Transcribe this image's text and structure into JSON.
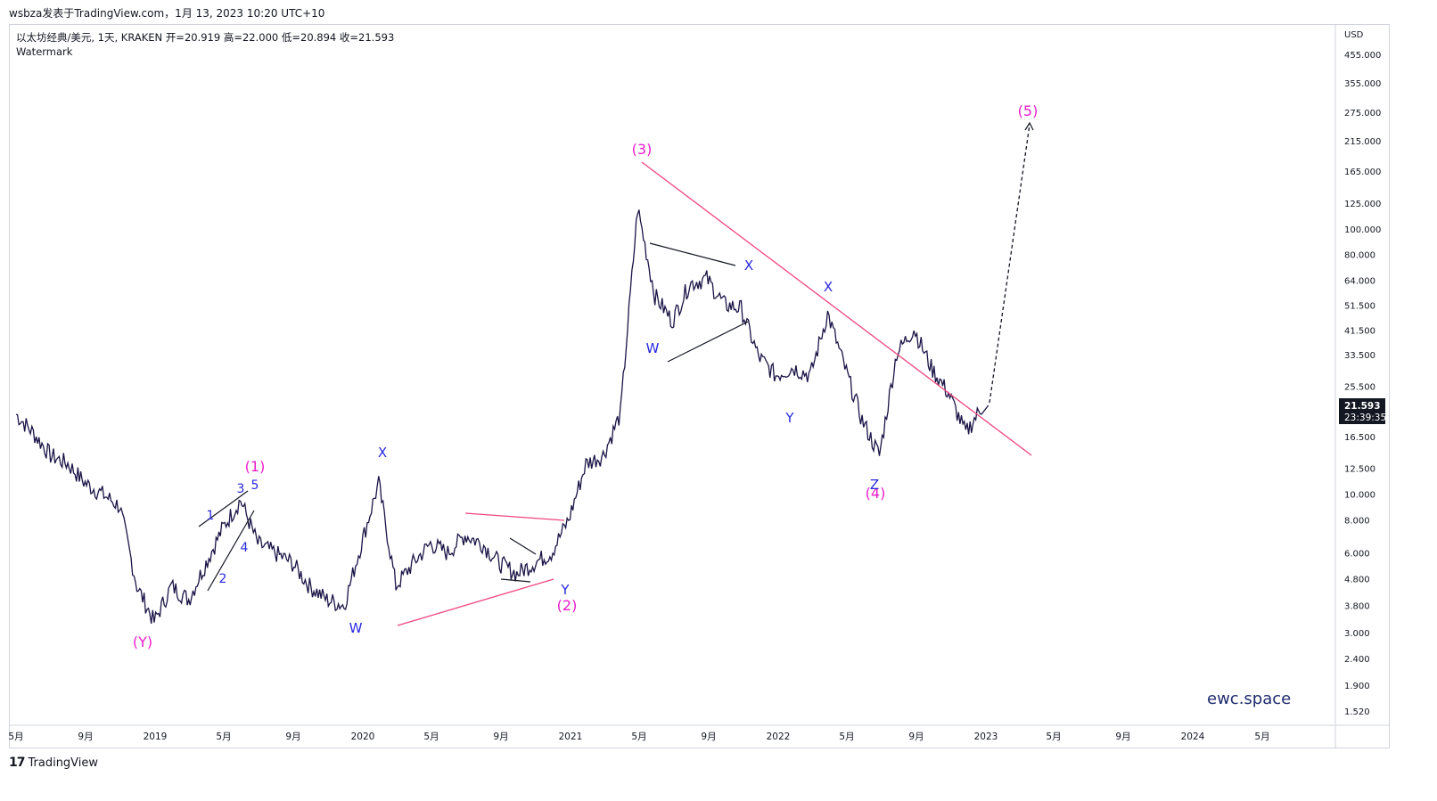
{
  "header": {
    "publisher_line": "wsbza发表于TradingView.com，1月 13, 2023 10:20 UTC+10"
  },
  "symbol": {
    "name": "以太坊经典/美元, 1天, KRAKEN",
    "open_label": "开=20.919",
    "high_label": "高=22.000",
    "low_label": "低=20.894",
    "close_label": "收=21.593",
    "watermark_label": "Watermark"
  },
  "price_tag": {
    "value": "21.593",
    "countdown": "23:39:35",
    "color": "#131722"
  },
  "brand": {
    "site": "ewc.space",
    "footer": "TradingView",
    "footer_logo": "17"
  },
  "colors": {
    "candles": "#1a1446",
    "magenta": "#e91ecb",
    "blue": "#2929e0",
    "trendline": "#f0457c",
    "black_line": "#131722"
  },
  "chart_data": {
    "type": "line",
    "scale": "log",
    "y_unit": "USD",
    "y_ticks": [
      "455.000",
      "355.000",
      "275.000",
      "215.000",
      "165.000",
      "125.000",
      "100.000",
      "80.000",
      "64.000",
      "51.500",
      "41.500",
      "33.500",
      "25.500",
      "16.500",
      "12.500",
      "10.000",
      "8.000",
      "6.000",
      "4.800",
      "3.800",
      "3.000",
      "2.400",
      "1.900",
      "1.520"
    ],
    "x_ticks": [
      "5月",
      "9月",
      "2019",
      "5月",
      "9月",
      "2020",
      "5月",
      "9月",
      "2021",
      "5月",
      "9月",
      "2022",
      "5月",
      "9月",
      "2023",
      "5月",
      "9月",
      "2024",
      "5月"
    ],
    "series": [
      {
        "x": [
          "2018-05",
          "2018-06",
          "2018-07",
          "2018-08",
          "2018-09",
          "2018-10",
          "2018-11",
          "2018-12",
          "2019-01",
          "2019-02",
          "2019-03",
          "2019-04",
          "2019-05",
          "2019-06",
          "2019-07",
          "2019-08",
          "2019-09",
          "2019-10",
          "2019-11",
          "2019-12",
          "2020-01",
          "2020-02",
          "2020-03",
          "2020-04",
          "2020-05",
          "2020-06",
          "2020-07",
          "2020-08",
          "2020-09",
          "2020-10",
          "2020-11",
          "2020-12",
          "2021-01",
          "2021-02",
          "2021-03",
          "2021-04",
          "2021-05",
          "2021-06",
          "2021-07",
          "2021-08",
          "2021-09",
          "2021-10",
          "2021-11",
          "2021-12",
          "2022-01",
          "2022-02",
          "2022-03",
          "2022-04",
          "2022-05",
          "2022-06",
          "2022-07",
          "2022-08",
          "2022-09",
          "2022-10",
          "2022-11",
          "2022-12",
          "2023-01"
        ],
        "values": [
          20,
          17,
          14,
          13,
          11,
          10,
          9,
          4.5,
          3.3,
          4.5,
          4.0,
          5.5,
          7.5,
          9.5,
          6.5,
          6.0,
          5.5,
          4.5,
          4.0,
          3.8,
          6.5,
          11,
          4.5,
          5.5,
          6.5,
          6.0,
          7.0,
          6.5,
          5.5,
          5.0,
          5.5,
          6.0,
          8,
          13,
          14,
          20,
          120,
          56,
          45,
          62,
          65,
          52,
          50,
          33,
          28,
          30,
          28,
          48,
          30,
          19,
          14,
          34,
          42,
          30,
          24,
          17,
          21.593
        ]
      }
    ],
    "wave_labels": [
      "(Y)",
      "(1)",
      "1",
      "2",
      "3",
      "4",
      "5",
      "W",
      "X",
      "(2)",
      "Y",
      "(3)",
      "W",
      "X",
      "Y",
      "X",
      "(4)",
      "Z",
      "(5)"
    ]
  }
}
